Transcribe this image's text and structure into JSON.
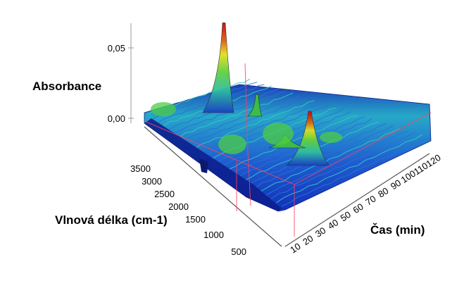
{
  "chart_data": {
    "type": "surface-3d",
    "z_axis": {
      "label": "Absorbance",
      "ticks": [
        "0,05",
        "0,00"
      ],
      "values": [
        0.05,
        0.0
      ]
    },
    "wavenumber_axis": {
      "label": "Vlnová délka (cm-1)",
      "ticks": [
        "3500",
        "3000",
        "2500",
        "2000",
        "1500",
        "1000",
        "500"
      ],
      "range": [
        3800,
        450
      ]
    },
    "time_axis": {
      "label": "Čas (min)",
      "ticks": [
        "10",
        "20",
        "30",
        "40",
        "50",
        "60",
        "70",
        "80",
        "90",
        "100",
        "110",
        "120"
      ],
      "range": [
        5,
        125
      ]
    },
    "peaks": [
      {
        "wavenumber": 2350,
        "time": 110,
        "absorbance": 0.058,
        "colour": "#d01010"
      },
      {
        "wavenumber": 1010,
        "time": 118,
        "absorbance": 0.035,
        "colour": "#c82010"
      },
      {
        "wavenumber": 1120,
        "time": 60,
        "absorbance": 0.014,
        "colour": "#3fbf3f"
      },
      {
        "wavenumber": 1700,
        "time": 85,
        "absorbance": 0.008,
        "colour": "#3fbf3f"
      }
    ],
    "colours": {
      "low": "#1a2ec0",
      "mid": "#22b0c0",
      "high": "#d01010",
      "marker": "#ff4060"
    }
  }
}
